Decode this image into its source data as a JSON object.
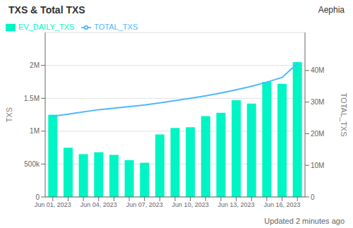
{
  "chart_data": {
    "type": "bar",
    "title": "TXS & Total TXS",
    "annotations": [
      "Aephia",
      "Updated 2 minutes ago"
    ],
    "ylabel": "TXS",
    "y2label": "TOTAL_TXS",
    "categories": [
      "Jun 01, 2023",
      null,
      null,
      "Jun 04, 2023",
      null,
      null,
      "Jun 07, 2023",
      null,
      null,
      "Jun 10, 2023",
      null,
      null,
      "Jun 13, 2023",
      null,
      null,
      "Jun 16, 2023",
      null
    ],
    "series": [
      {
        "name": "EV_DAILY_TXS",
        "type": "bar",
        "color": "#00F5C4",
        "values": [
          1250000,
          750000,
          650000,
          680000,
          640000,
          560000,
          520000,
          950000,
          1050000,
          1060000,
          1230000,
          1280000,
          1470000,
          1420000,
          1750000,
          1720000,
          2050000
        ]
      },
      {
        "name": "TOTAL_TXS",
        "type": "line",
        "color": "#4DB8FF",
        "axis": "y2",
        "values": [
          25500000,
          26200000,
          26900000,
          27600000,
          28100000,
          28600000,
          29100000,
          29750000,
          30500000,
          31200000,
          32000000,
          32900000,
          33900000,
          35000000,
          36300000,
          37800000,
          42200000
        ]
      }
    ],
    "ylim": [
      0,
      2500000
    ],
    "yticks": [
      0,
      {
        "value": 500000,
        "label": "500k"
      },
      {
        "value": 1000000,
        "label": "1M"
      },
      {
        "value": 1500000,
        "label": "1.5M"
      },
      {
        "value": 2000000,
        "label": "2M"
      }
    ],
    "y2lim": [
      0,
      52000000
    ],
    "y2ticks": [
      0,
      {
        "value": 10000000,
        "label": "10M"
      },
      {
        "value": 20000000,
        "label": "20M"
      },
      {
        "value": 30000000,
        "label": "30M"
      },
      {
        "value": 40000000,
        "label": "40M"
      }
    ],
    "grid": true,
    "legend": "upper left"
  }
}
